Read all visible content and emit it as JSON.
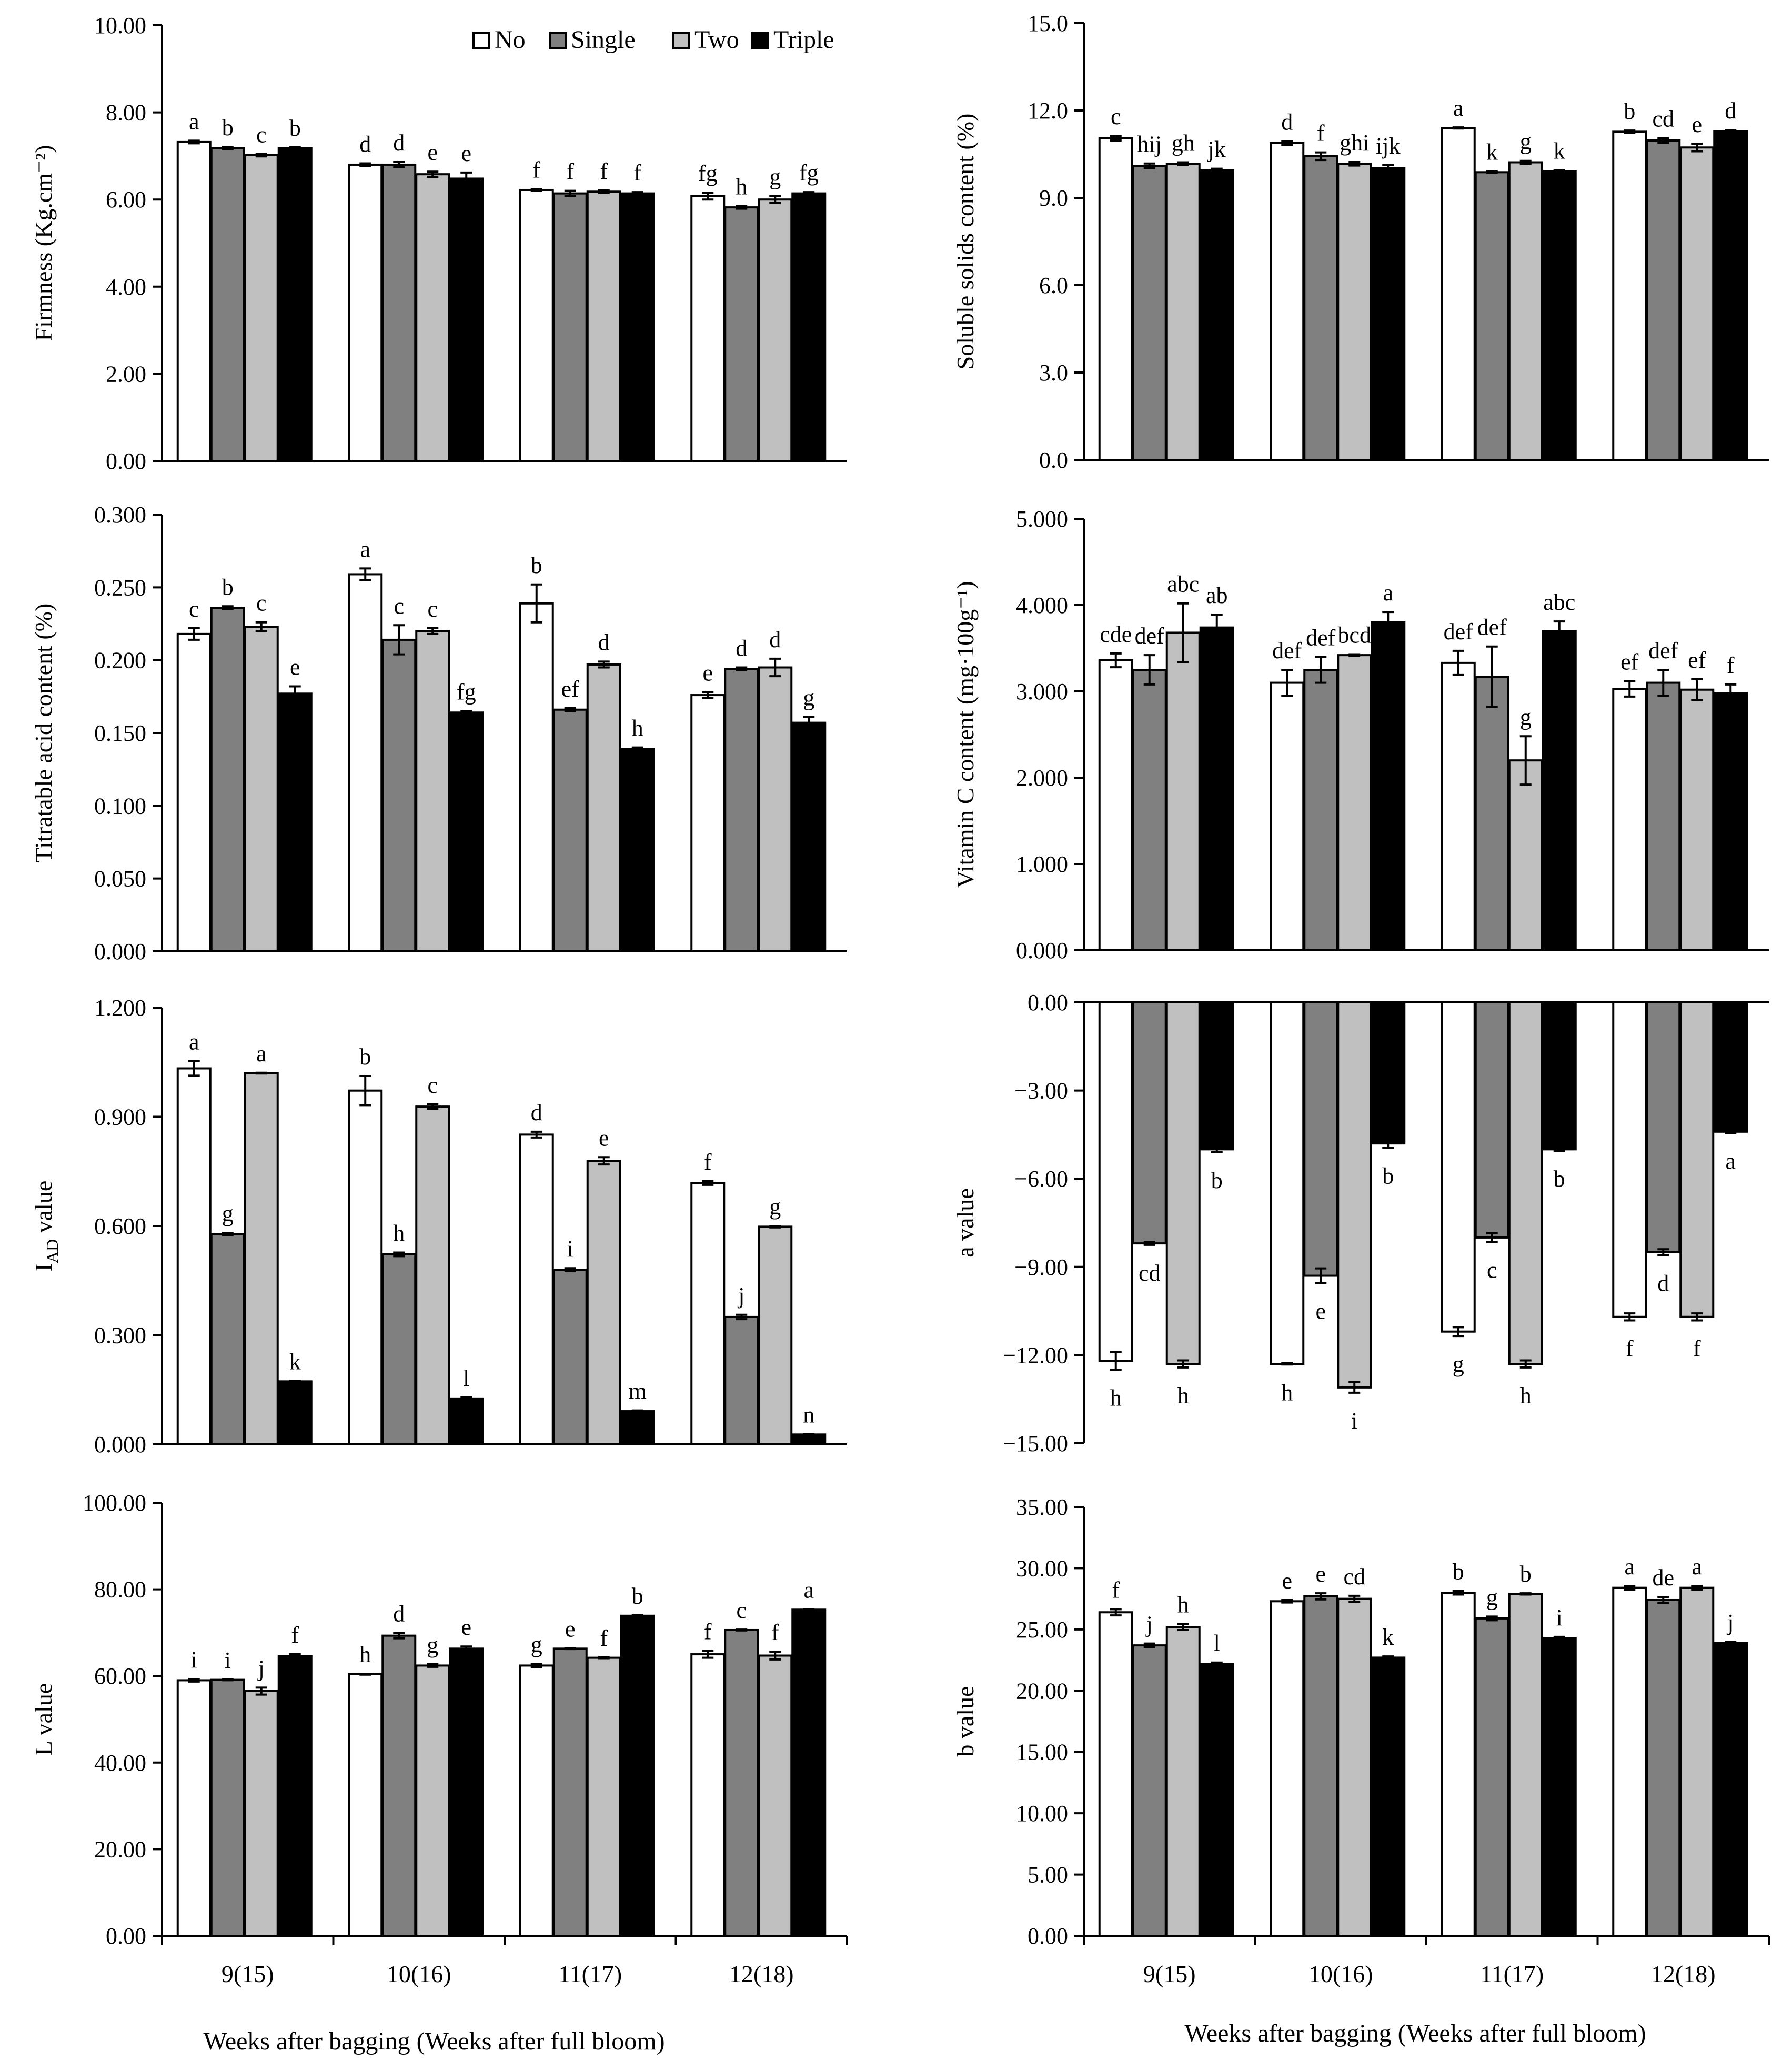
{
  "colors": {
    "No": "#ffffff",
    "Single": "#808080",
    "Two": "#c0c0c0",
    "Triple": "#000000"
  },
  "legend": [
    "No",
    "Single",
    "Two",
    "Triple"
  ],
  "x_axis_title": "Weeks after  bagging  (Weeks after  full  bloom)",
  "chart_data": [
    {
      "id": "firmness",
      "type": "bar",
      "ylabel": "Firmness  (Kg.cm⁻²)",
      "categories": [
        "9(15)",
        "10(16)",
        "11(17)",
        "12(18)"
      ],
      "ylim": [
        0,
        10
      ],
      "ticks": [
        0,
        2,
        4,
        6,
        8,
        10
      ],
      "tick_labels": [
        "0.00",
        "2.00",
        "4.00",
        "6.00",
        "8.00",
        "10.00"
      ],
      "legend_shown": true,
      "show_xticks": false,
      "series": [
        {
          "name": "No",
          "values": [
            7.32,
            6.8,
            6.22,
            6.08
          ],
          "errors": [
            0.03,
            0.03,
            0.02,
            0.08
          ],
          "labels": [
            "a",
            "d",
            "f",
            "fg"
          ]
        },
        {
          "name": "Single",
          "values": [
            7.18,
            6.8,
            6.14,
            5.82
          ],
          "errors": [
            0.03,
            0.06,
            0.06,
            0.03
          ],
          "labels": [
            "b",
            "d",
            "f",
            "h"
          ]
        },
        {
          "name": "Two",
          "values": [
            7.02,
            6.58,
            6.18,
            6.0
          ],
          "errors": [
            0.03,
            0.06,
            0.03,
            0.08
          ],
          "labels": [
            "c",
            "e",
            "f",
            "g"
          ]
        },
        {
          "name": "Triple",
          "values": [
            7.18,
            6.48,
            6.14,
            6.14
          ],
          "errors": [
            0.02,
            0.14,
            0.03,
            0.03
          ],
          "labels": [
            "b",
            "e",
            "f",
            "fg"
          ]
        }
      ]
    },
    {
      "id": "ssc",
      "type": "bar",
      "ylabel": "Soluble  solids  content   (%)",
      "categories": [
        "9(15)",
        "10(16)",
        "11(17)",
        "12(18)"
      ],
      "ylim": [
        0,
        15
      ],
      "ticks": [
        0,
        3,
        6,
        9,
        12,
        15
      ],
      "tick_labels": [
        "0.0",
        "3.0",
        "6.0",
        "9.0",
        "12.0",
        "15.0"
      ],
      "legend_shown": false,
      "show_xticks": false,
      "series": [
        {
          "name": "No",
          "values": [
            11.05,
            10.88,
            11.4,
            11.27
          ],
          "errors": [
            0.08,
            0.06,
            0.02,
            0.04
          ],
          "labels": [
            "c",
            "d",
            "a",
            "b"
          ]
        },
        {
          "name": "Single",
          "values": [
            10.1,
            10.43,
            9.88,
            10.97
          ],
          "errors": [
            0.08,
            0.13,
            0.03,
            0.08
          ],
          "labels": [
            "hij",
            "f",
            "k",
            "cd"
          ]
        },
        {
          "name": "Two",
          "values": [
            10.17,
            10.17,
            10.22,
            10.73
          ],
          "errors": [
            0.05,
            0.06,
            0.05,
            0.13
          ],
          "labels": [
            "gh",
            "ghi",
            "g",
            "e"
          ]
        },
        {
          "name": "Triple",
          "values": [
            9.94,
            10.02,
            9.92,
            11.28
          ],
          "errors": [
            0.06,
            0.1,
            0.03,
            0.05
          ],
          "labels": [
            "jk",
            "ijk",
            "k",
            "d"
          ]
        }
      ]
    },
    {
      "id": "titratable",
      "type": "bar",
      "ylabel": "Titratable  acid content  (%)",
      "categories": [
        "9(15)",
        "10(16)",
        "11(17)",
        "12(18)"
      ],
      "ylim": [
        0,
        0.3
      ],
      "ticks": [
        0,
        0.05,
        0.1,
        0.15,
        0.2,
        0.25,
        0.3
      ],
      "tick_labels": [
        "0.000",
        "0.050",
        "0.100",
        "0.150",
        "0.200",
        "0.250",
        "0.300"
      ],
      "legend_shown": false,
      "show_xticks": false,
      "series": [
        {
          "name": "No",
          "values": [
            0.218,
            0.259,
            0.239,
            0.176
          ],
          "errors": [
            0.004,
            0.004,
            0.013,
            0.002
          ],
          "labels": [
            "c",
            "a",
            "b",
            "e"
          ]
        },
        {
          "name": "Single",
          "values": [
            0.236,
            0.214,
            0.166,
            0.194
          ],
          "errors": [
            0.001,
            0.01,
            0.001,
            0.001
          ],
          "labels": [
            "b",
            "c",
            "ef",
            "d"
          ]
        },
        {
          "name": "Two",
          "values": [
            0.223,
            0.22,
            0.197,
            0.195
          ],
          "errors": [
            0.003,
            0.002,
            0.002,
            0.006
          ],
          "labels": [
            "c",
            "c",
            "d",
            "d"
          ]
        },
        {
          "name": "Triple",
          "values": [
            0.177,
            0.164,
            0.139,
            0.157
          ],
          "errors": [
            0.005,
            0.001,
            0.001,
            0.004
          ],
          "labels": [
            "e",
            "fg",
            "h",
            "g"
          ]
        }
      ]
    },
    {
      "id": "vitc",
      "type": "bar",
      "ylabel": "Vitamin  C content  (mg·100g⁻¹)",
      "categories": [
        "9(15)",
        "10(16)",
        "11(17)",
        "12(18)"
      ],
      "ylim": [
        0,
        5
      ],
      "ticks": [
        0,
        1,
        2,
        3,
        4,
        5
      ],
      "tick_labels": [
        "0.000",
        "1.000",
        "2.000",
        "3.000",
        "4.000",
        "5.000"
      ],
      "legend_shown": false,
      "show_xticks": false,
      "series": [
        {
          "name": "No",
          "values": [
            3.36,
            3.1,
            3.33,
            3.03
          ],
          "errors": [
            0.08,
            0.15,
            0.14,
            0.09
          ],
          "labels": [
            "cde",
            "def",
            "def",
            "ef"
          ]
        },
        {
          "name": "Single",
          "values": [
            3.25,
            3.25,
            3.17,
            3.1
          ],
          "errors": [
            0.17,
            0.15,
            0.35,
            0.15
          ],
          "labels": [
            "def",
            "def",
            "def",
            "def"
          ]
        },
        {
          "name": "Two",
          "values": [
            3.68,
            3.42,
            2.2,
            3.02
          ],
          "errors": [
            0.34,
            0.01,
            0.28,
            0.12
          ],
          "labels": [
            "abc",
            "bcd",
            "g",
            "ef"
          ]
        },
        {
          "name": "Triple",
          "values": [
            3.74,
            3.8,
            3.7,
            2.98
          ],
          "errors": [
            0.15,
            0.12,
            0.11,
            0.1
          ],
          "labels": [
            "ab",
            "a",
            "abc",
            "f"
          ]
        }
      ]
    },
    {
      "id": "iad",
      "type": "bar",
      "ylabel": "I_AD value",
      "categories": [
        "9(15)",
        "10(16)",
        "11(17)",
        "12(18)"
      ],
      "ylim": [
        0,
        1.2
      ],
      "ticks": [
        0,
        0.3,
        0.6,
        0.9,
        1.2
      ],
      "tick_labels": [
        "0.000",
        "0.300",
        "0.600",
        "0.900",
        "1.200"
      ],
      "legend_shown": false,
      "show_xticks": false,
      "series": [
        {
          "name": "No",
          "values": [
            1.033,
            0.972,
            0.851,
            0.718
          ],
          "errors": [
            0.02,
            0.04,
            0.008,
            0.005
          ],
          "labels": [
            "a",
            "b",
            "d",
            "f"
          ]
        },
        {
          "name": "Single",
          "values": [
            0.578,
            0.522,
            0.48,
            0.35
          ],
          "errors": [
            0.003,
            0.005,
            0.004,
            0.006
          ],
          "labels": [
            "g",
            "h",
            "i",
            "j"
          ]
        },
        {
          "name": "Two",
          "values": [
            1.02,
            0.928,
            0.779,
            0.598
          ],
          "errors": [
            0.001,
            0.006,
            0.01,
            0.002
          ],
          "labels": [
            "a",
            "c",
            "e",
            "g"
          ]
        },
        {
          "name": "Triple",
          "values": [
            0.173,
            0.126,
            0.091,
            0.027
          ],
          "errors": [
            0.001,
            0.003,
            0.002,
            0.001
          ],
          "labels": [
            "k",
            "l",
            "m",
            "n"
          ]
        }
      ]
    },
    {
      "id": "avalue",
      "type": "bar",
      "ylabel": "a value",
      "categories": [
        "9(15)",
        "10(16)",
        "11(17)",
        "12(18)"
      ],
      "ylim": [
        -15,
        0
      ],
      "ticks": [
        -15,
        -12,
        -9,
        -6,
        -3,
        0
      ],
      "tick_labels": [
        "−15.00",
        "−12.00",
        "−9.00",
        "−6.00",
        "−3.00",
        "0.00"
      ],
      "legend_shown": false,
      "show_xticks": false,
      "series": [
        {
          "name": "No",
          "values": [
            -12.2,
            -12.3,
            -11.2,
            -10.7
          ],
          "errors": [
            0.3,
            0.02,
            0.15,
            0.12
          ],
          "labels": [
            "h",
            "h",
            "g",
            "f"
          ]
        },
        {
          "name": "Single",
          "values": [
            -8.2,
            -9.3,
            -8.0,
            -8.5
          ],
          "errors": [
            0.05,
            0.25,
            0.15,
            0.1
          ],
          "labels": [
            "cd",
            "e",
            "c",
            "d"
          ]
        },
        {
          "name": "Two",
          "values": [
            -12.3,
            -13.1,
            -12.3,
            -10.7
          ],
          "errors": [
            0.12,
            0.18,
            0.12,
            0.12
          ],
          "labels": [
            "h",
            "i",
            "h",
            "f"
          ]
        },
        {
          "name": "Triple",
          "values": [
            -5.0,
            -4.8,
            -5.0,
            -4.4
          ],
          "errors": [
            0.1,
            0.15,
            0.05,
            0.05
          ],
          "labels": [
            "b",
            "b",
            "b",
            "a"
          ]
        }
      ]
    },
    {
      "id": "lvalue",
      "type": "bar",
      "ylabel": "L value",
      "categories": [
        "9(15)",
        "10(16)",
        "11(17)",
        "12(18)"
      ],
      "ylim": [
        0,
        100
      ],
      "ticks": [
        0,
        20,
        40,
        60,
        80,
        100
      ],
      "tick_labels": [
        "0.00",
        "20.00",
        "40.00",
        "60.00",
        "80.00",
        "100.00"
      ],
      "legend_shown": false,
      "show_xticks": true,
      "series": [
        {
          "name": "No",
          "values": [
            59.0,
            60.4,
            62.4,
            65.0
          ],
          "errors": [
            0.3,
            0.1,
            0.4,
            0.8
          ],
          "labels": [
            "i",
            "h",
            "g",
            "f"
          ]
        },
        {
          "name": "Single",
          "values": [
            59.1,
            69.3,
            66.3,
            70.6
          ],
          "errors": [
            0.1,
            0.6,
            0.1,
            0.1
          ],
          "labels": [
            "i",
            "d",
            "e",
            "c"
          ]
        },
        {
          "name": "Two",
          "values": [
            56.5,
            62.4,
            64.2,
            64.7
          ],
          "errors": [
            0.8,
            0.3,
            0.1,
            0.9
          ],
          "labels": [
            "j",
            "g",
            "f",
            "f"
          ]
        },
        {
          "name": "Triple",
          "values": [
            64.6,
            66.3,
            73.9,
            75.3
          ],
          "errors": [
            0.4,
            0.5,
            0.1,
            0.1
          ],
          "labels": [
            "f",
            "e",
            "b",
            "a"
          ]
        }
      ]
    },
    {
      "id": "bvalue",
      "type": "bar",
      "ylabel": "b value",
      "categories": [
        "9(15)",
        "10(16)",
        "11(17)",
        "12(18)"
      ],
      "ylim": [
        0,
        35
      ],
      "ticks": [
        0,
        5,
        10,
        15,
        20,
        25,
        30,
        35
      ],
      "tick_labels": [
        "0.00",
        "5.00",
        "10.00",
        "15.00",
        "20.00",
        "25.00",
        "30.00",
        "35.00"
      ],
      "legend_shown": false,
      "show_xticks": true,
      "series": [
        {
          "name": "No",
          "values": [
            26.4,
            27.3,
            28.0,
            28.4
          ],
          "errors": [
            0.25,
            0.1,
            0.15,
            0.15
          ],
          "labels": [
            "f",
            "e",
            "b",
            "a"
          ]
        },
        {
          "name": "Single",
          "values": [
            23.7,
            27.7,
            25.9,
            27.4
          ],
          "errors": [
            0.15,
            0.25,
            0.15,
            0.25
          ],
          "labels": [
            "j",
            "e",
            "g",
            "de"
          ]
        },
        {
          "name": "Two",
          "values": [
            25.2,
            27.5,
            27.9,
            28.4
          ],
          "errors": [
            0.25,
            0.25,
            0.05,
            0.15
          ],
          "labels": [
            "h",
            "cd",
            "b",
            "a"
          ]
        },
        {
          "name": "Triple",
          "values": [
            22.2,
            22.7,
            24.3,
            23.9
          ],
          "errors": [
            0.1,
            0.1,
            0.1,
            0.1
          ],
          "labels": [
            "l",
            "k",
            "i",
            "j"
          ]
        }
      ]
    }
  ]
}
